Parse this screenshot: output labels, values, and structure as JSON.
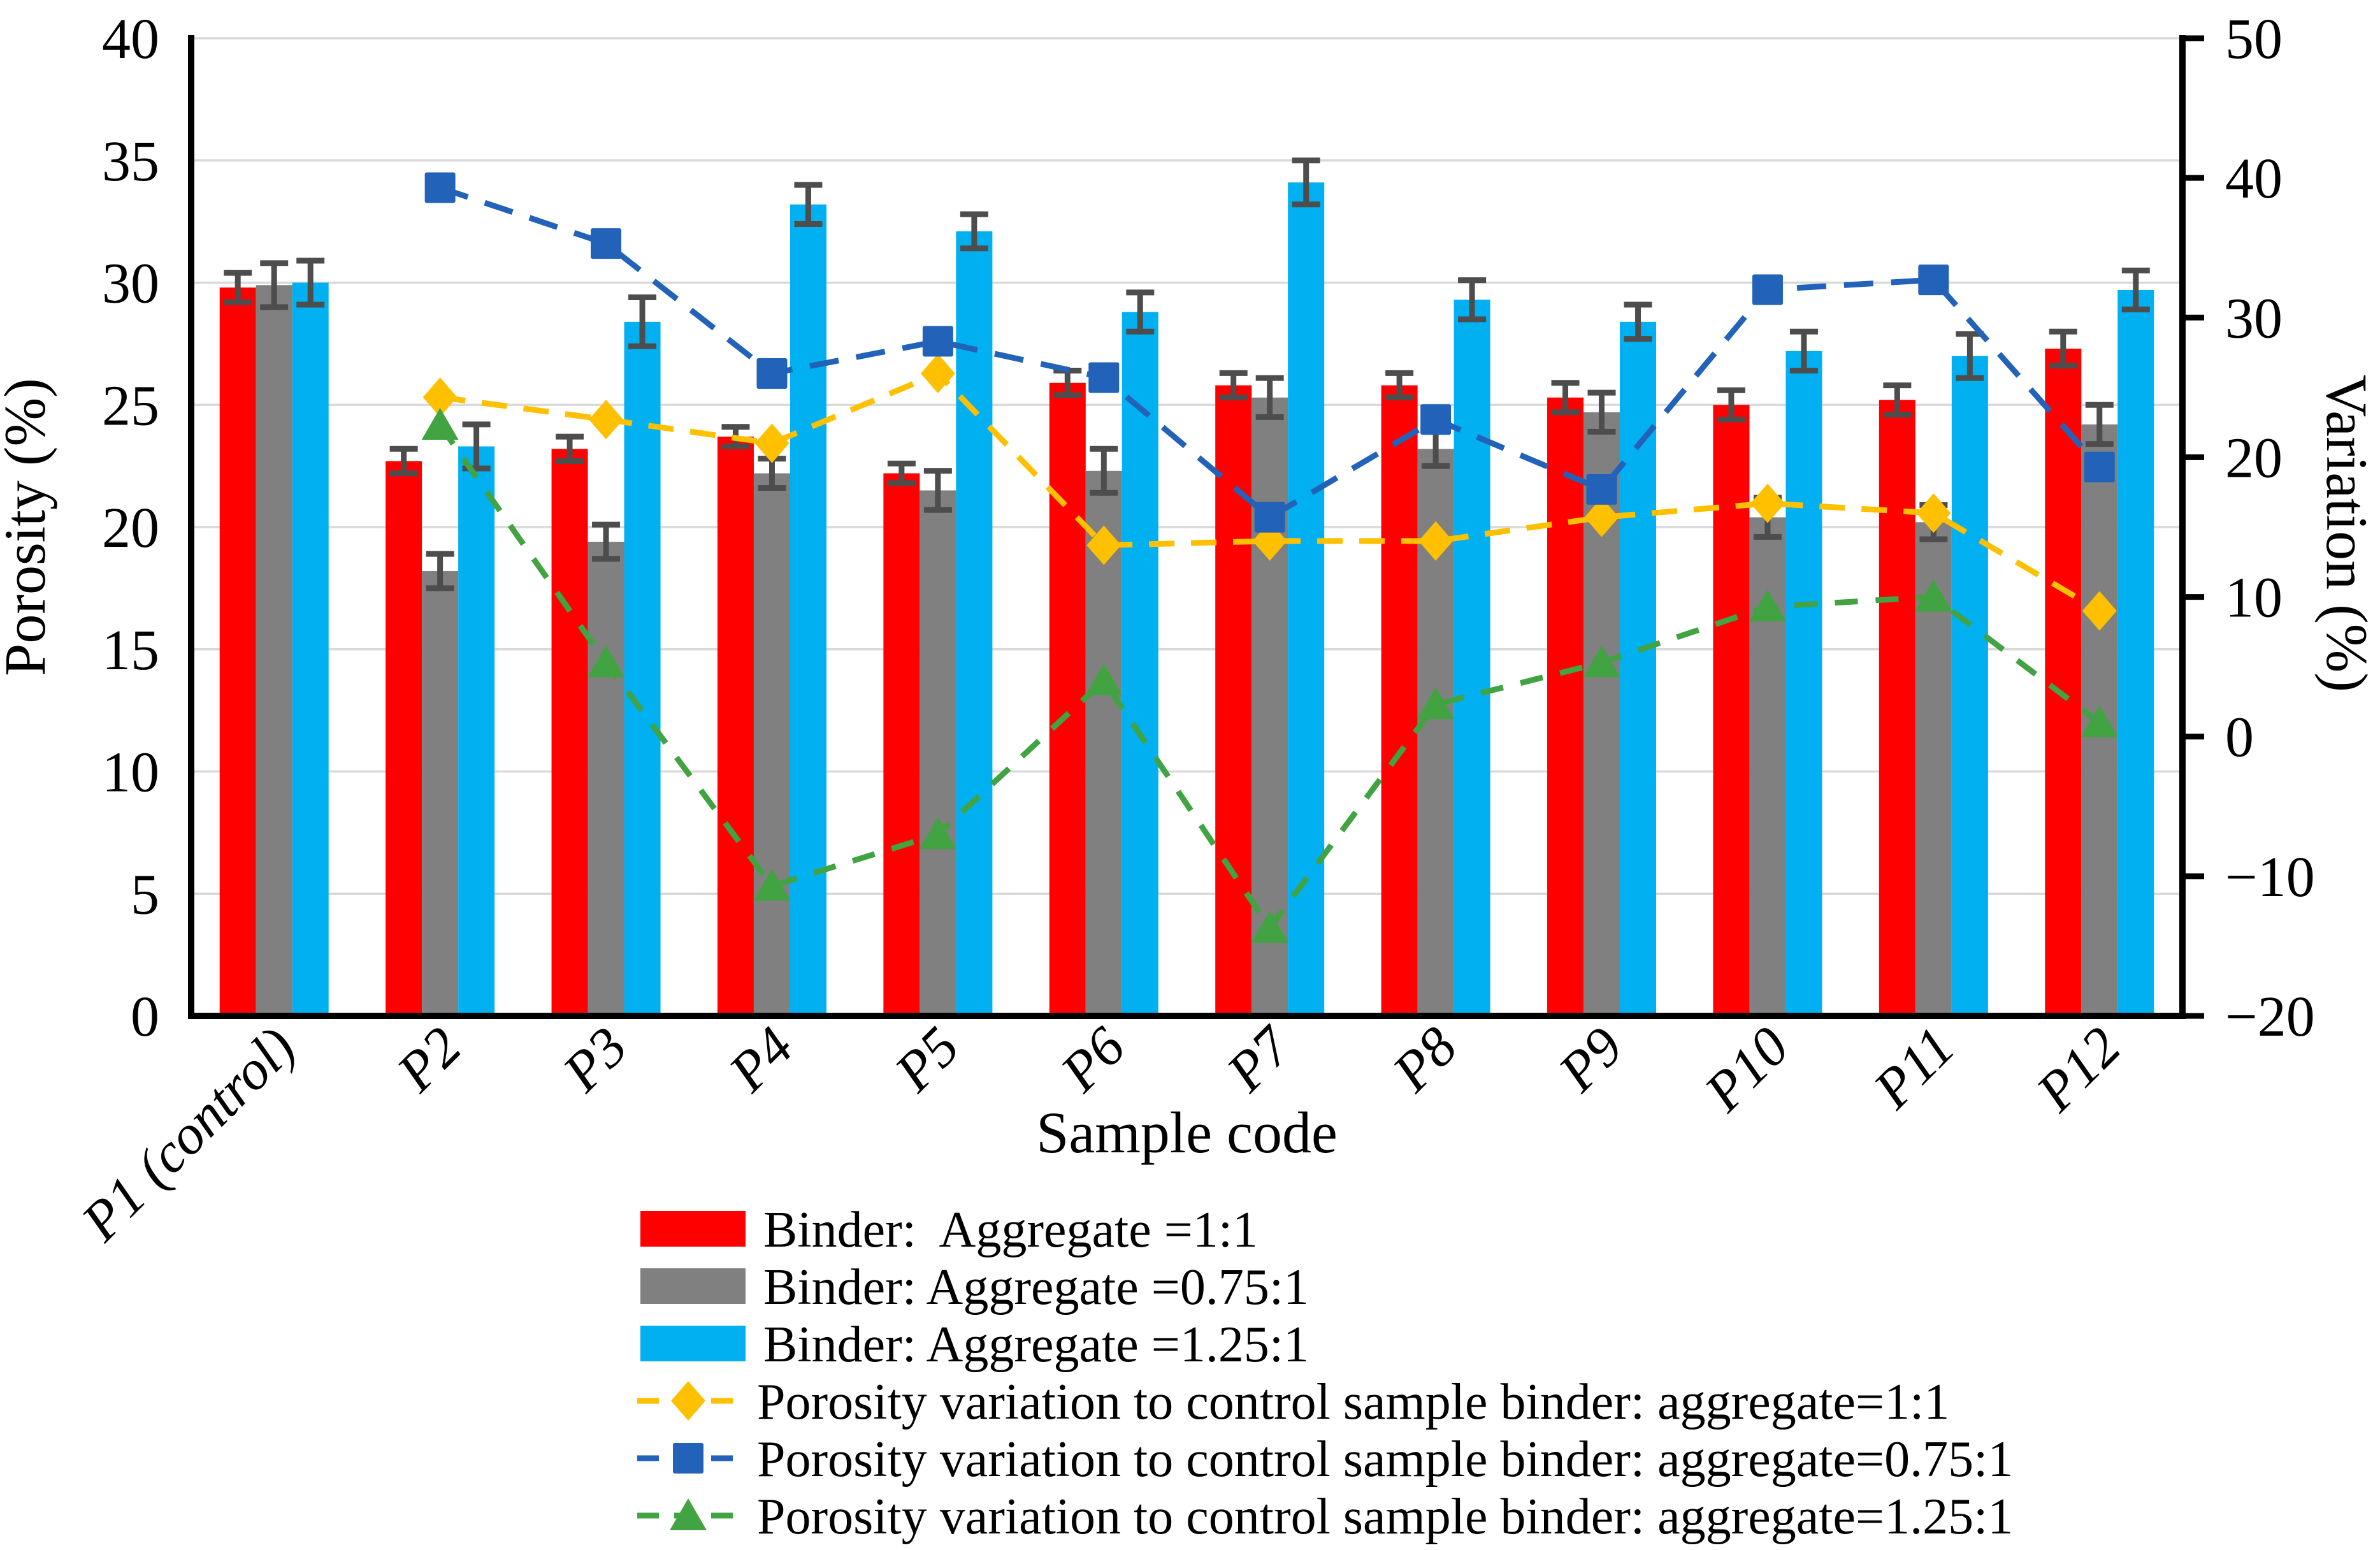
{
  "figure": {
    "kind": "combo bar and line chart",
    "background": "#ffffff"
  },
  "chart_data": {
    "type": "bar",
    "subtype": "grouped-bars-with-dashed-lines",
    "categories": [
      "P1 (control)",
      "P2",
      "P3",
      "P4",
      "P5",
      "P6",
      "P7",
      "P8",
      "P9",
      "P10",
      "P11",
      "P12"
    ],
    "xlabel": "Sample code",
    "left_axis": {
      "label": "Porosity (%)",
      "min": 0,
      "max": 40,
      "tick_step": 5,
      "tick_labels": [
        "40",
        "35",
        "30",
        "25",
        "20",
        "15",
        "10",
        "5",
        "0"
      ]
    },
    "right_axis": {
      "label": "Variation (%)",
      "min": -20,
      "max": 50,
      "tick_step": 10,
      "tick_labels": [
        "50",
        "40",
        "30",
        "20",
        "10",
        "0",
        "−10",
        "−20"
      ]
    },
    "grid": true,
    "legend_position": "bottom-left",
    "bar_series": [
      {
        "name": "Binder:  Aggregate =1:1",
        "color": "#FF0000",
        "axis": "left",
        "values": [
          29.8,
          22.7,
          23.2,
          23.7,
          22.2,
          25.9,
          25.8,
          25.8,
          25.3,
          25.0,
          25.2,
          27.3
        ],
        "errors": [
          0.6,
          0.5,
          0.5,
          0.4,
          0.4,
          0.5,
          0.5,
          0.5,
          0.6,
          0.6,
          0.6,
          0.7
        ]
      },
      {
        "name": "Binder: Aggregate =0.75:1",
        "color": "#808080",
        "axis": "left",
        "values": [
          29.9,
          18.2,
          19.4,
          22.2,
          21.5,
          22.3,
          25.3,
          23.2,
          24.7,
          20.4,
          20.2,
          24.2
        ],
        "errors": [
          0.9,
          0.7,
          0.7,
          0.6,
          0.8,
          0.9,
          0.8,
          0.7,
          0.8,
          0.8,
          0.7,
          0.8
        ]
      },
      {
        "name": "Binder: Aggregate =1.25:1",
        "color": "#00B0F0",
        "axis": "left",
        "values": [
          30.0,
          23.3,
          28.4,
          33.2,
          32.1,
          28.8,
          34.1,
          29.3,
          28.4,
          27.2,
          27.0,
          29.7
        ],
        "errors": [
          0.9,
          0.9,
          1.0,
          0.8,
          0.7,
          0.8,
          0.9,
          0.8,
          0.7,
          0.8,
          0.9,
          0.8
        ]
      }
    ],
    "line_series": [
      {
        "name": "Porosity variation to control sample binder: aggregate=1:1",
        "color": "#FFC000",
        "marker": "diamond",
        "axis": "right",
        "values": [
          null,
          24.3,
          22.7,
          21.0,
          26.0,
          13.7,
          14.0,
          14.0,
          15.7,
          16.7,
          16.0,
          9.0
        ]
      },
      {
        "name": "Porosity variation to control sample binder: aggregate=0.75:1",
        "color": "#2262B8",
        "marker": "square",
        "axis": "right",
        "values": [
          null,
          39.3,
          35.3,
          26.0,
          28.3,
          25.7,
          15.7,
          22.7,
          17.7,
          32.0,
          32.7,
          19.3
        ]
      },
      {
        "name": "Porosity variation to control sample binder: aggregate=1.25:1",
        "color": "#41A341",
        "marker": "triangle",
        "axis": "right",
        "values": [
          null,
          22.3,
          5.3,
          -10.7,
          -7.0,
          4.0,
          -13.7,
          2.3,
          5.3,
          9.3,
          10.0,
          1.0
        ]
      }
    ],
    "style": {
      "gridline_color": "#D9D9D9",
      "axis_color": "#000000",
      "error_bar_color": "#4D4D4D"
    }
  }
}
